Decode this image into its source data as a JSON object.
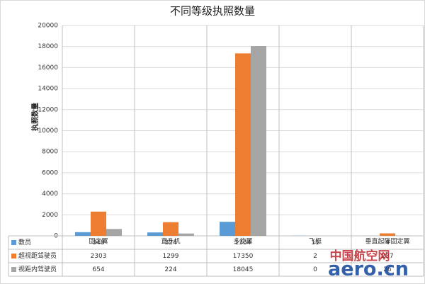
{
  "chart_data": {
    "type": "bar",
    "title": "不同等级执照数量",
    "y_label": "执照数量",
    "categories": [
      "固定翼",
      "直升机",
      "多旋翼",
      "飞艇",
      "垂直起降固定翼"
    ],
    "series": [
      {
        "name": "教员",
        "color": "#5b9bd5",
        "values": [
          348,
          324,
          1334,
          11,
          4
        ]
      },
      {
        "name": "超视距驾驶员",
        "color": "#ed7d31",
        "values": [
          2303,
          1299,
          17350,
          2,
          237
        ]
      },
      {
        "name": "视距内驾驶员",
        "color": "#a5a5a5",
        "values": [
          654,
          224,
          18045,
          0,
          26
        ]
      }
    ],
    "ylim": [
      0,
      20000
    ],
    "yticks": [
      0,
      2000,
      4000,
      6000,
      8000,
      10000,
      12000,
      14000,
      16000,
      18000,
      20000
    ],
    "grid": true,
    "data_table": true
  },
  "watermark": {
    "line1": "中国航空网",
    "line2": "aero.cn"
  }
}
